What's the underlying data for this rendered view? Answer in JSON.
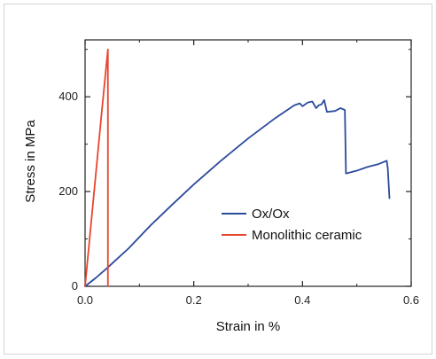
{
  "chart_data": {
    "type": "line",
    "title": "",
    "xlabel": "Strain in %",
    "ylabel": "Stress in MPa",
    "xlim": [
      0,
      0.6
    ],
    "ylim": [
      0,
      520
    ],
    "xticks": [
      0.0,
      0.2,
      0.4,
      0.6
    ],
    "xtick_labels": [
      "0.0",
      "0.2",
      "0.4",
      "0.6"
    ],
    "yticks": [
      0,
      200,
      400
    ],
    "ytick_labels": [
      "0",
      "200",
      "400"
    ],
    "grid": false,
    "legend_position": "center-right",
    "series": [
      {
        "name": "Ox/Ox",
        "color": "#2b4a9b",
        "points": [
          [
            0.0,
            0
          ],
          [
            0.02,
            18
          ],
          [
            0.04,
            38
          ],
          [
            0.08,
            80
          ],
          [
            0.12,
            128
          ],
          [
            0.16,
            172
          ],
          [
            0.2,
            215
          ],
          [
            0.25,
            265
          ],
          [
            0.3,
            312
          ],
          [
            0.35,
            355
          ],
          [
            0.385,
            382
          ],
          [
            0.395,
            386
          ],
          [
            0.4,
            380
          ],
          [
            0.41,
            388
          ],
          [
            0.418,
            390
          ],
          [
            0.425,
            376
          ],
          [
            0.43,
            382
          ],
          [
            0.435,
            384
          ],
          [
            0.44,
            393
          ],
          [
            0.445,
            368
          ],
          [
            0.46,
            370
          ],
          [
            0.47,
            376
          ],
          [
            0.478,
            372
          ],
          [
            0.48,
            238
          ],
          [
            0.5,
            244
          ],
          [
            0.52,
            252
          ],
          [
            0.54,
            258
          ],
          [
            0.555,
            265
          ],
          [
            0.557,
            248
          ],
          [
            0.56,
            186
          ]
        ]
      },
      {
        "name": "Monolithic ceramic",
        "color": "#e8452c",
        "points": [
          [
            0.0,
            0
          ],
          [
            0.01,
            120
          ],
          [
            0.02,
            240
          ],
          [
            0.03,
            360
          ],
          [
            0.042,
            500
          ],
          [
            0.042,
            0
          ]
        ]
      }
    ]
  }
}
